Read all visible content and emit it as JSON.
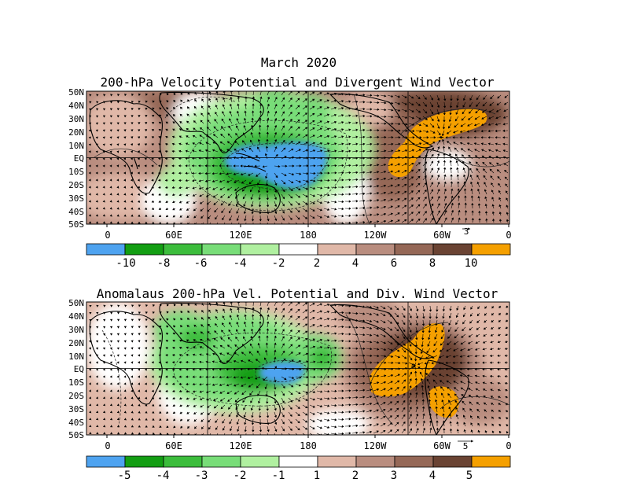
{
  "figure": {
    "title_line1": "March 2020",
    "title_line2": "200-hPa Velocity Potential and Divergent Wind Vector",
    "bottom_title": "Anomalaus 200-hPa Vel. Potential and Div. Wind Vector"
  },
  "chart_data": [
    {
      "type": "heatmap",
      "name": "Total 200-hPa velocity potential",
      "lat_labels": [
        "50N",
        "40N",
        "30N",
        "20N",
        "10N",
        "EQ",
        "10S",
        "20S",
        "30S",
        "40S",
        "50S"
      ],
      "lon_labels": [
        "0",
        "60E",
        "120E",
        "180",
        "120W",
        "60W",
        "0"
      ],
      "ylim": [
        -50,
        50
      ],
      "xlim": [
        0,
        360
      ],
      "colorbar_ticks": [
        "-10",
        "-8",
        "-6",
        "-4",
        "-2",
        "2",
        "4",
        "6",
        "8",
        "10"
      ],
      "colorbar_colors": [
        "#4ea3f0",
        "#139e13",
        "#3cbd3c",
        "#78dd78",
        "#b0f0a0",
        "#ffffff",
        "#e0b8a8",
        "#b98d7f",
        "#956857",
        "#6a4333",
        "#f5a000"
      ],
      "vector_reference": "3",
      "features": [
        {
          "region": "Maritime Continent / western Pacific",
          "value_class": "< -10"
        },
        {
          "region": "Atlantic / tropical South America",
          "value_class": "> 10"
        }
      ]
    },
    {
      "type": "heatmap",
      "name": "Anomalous 200-hPa velocity potential",
      "lat_labels": [
        "50N",
        "40N",
        "30N",
        "20N",
        "10N",
        "EQ",
        "10S",
        "20S",
        "30S",
        "40S",
        "50S"
      ],
      "lon_labels": [
        "0",
        "60E",
        "120E",
        "180",
        "120W",
        "60W",
        "0"
      ],
      "ylim": [
        -50,
        50
      ],
      "xlim": [
        0,
        360
      ],
      "colorbar_ticks": [
        "-5",
        "-4",
        "-3",
        "-2",
        "-1",
        "1",
        "2",
        "3",
        "4",
        "5"
      ],
      "colorbar_colors": [
        "#4ea3f0",
        "#139e13",
        "#3cbd3c",
        "#78dd78",
        "#b0f0a0",
        "#ffffff",
        "#e0b8a8",
        "#b98d7f",
        "#956857",
        "#6a4333",
        "#f5a000"
      ],
      "vector_reference": "5",
      "features": [
        {
          "region": "western Pacific near equator",
          "value_class": "< -5"
        },
        {
          "region": "eastern Pacific / Caribbean / South America",
          "value_class": "> 5"
        }
      ]
    }
  ]
}
